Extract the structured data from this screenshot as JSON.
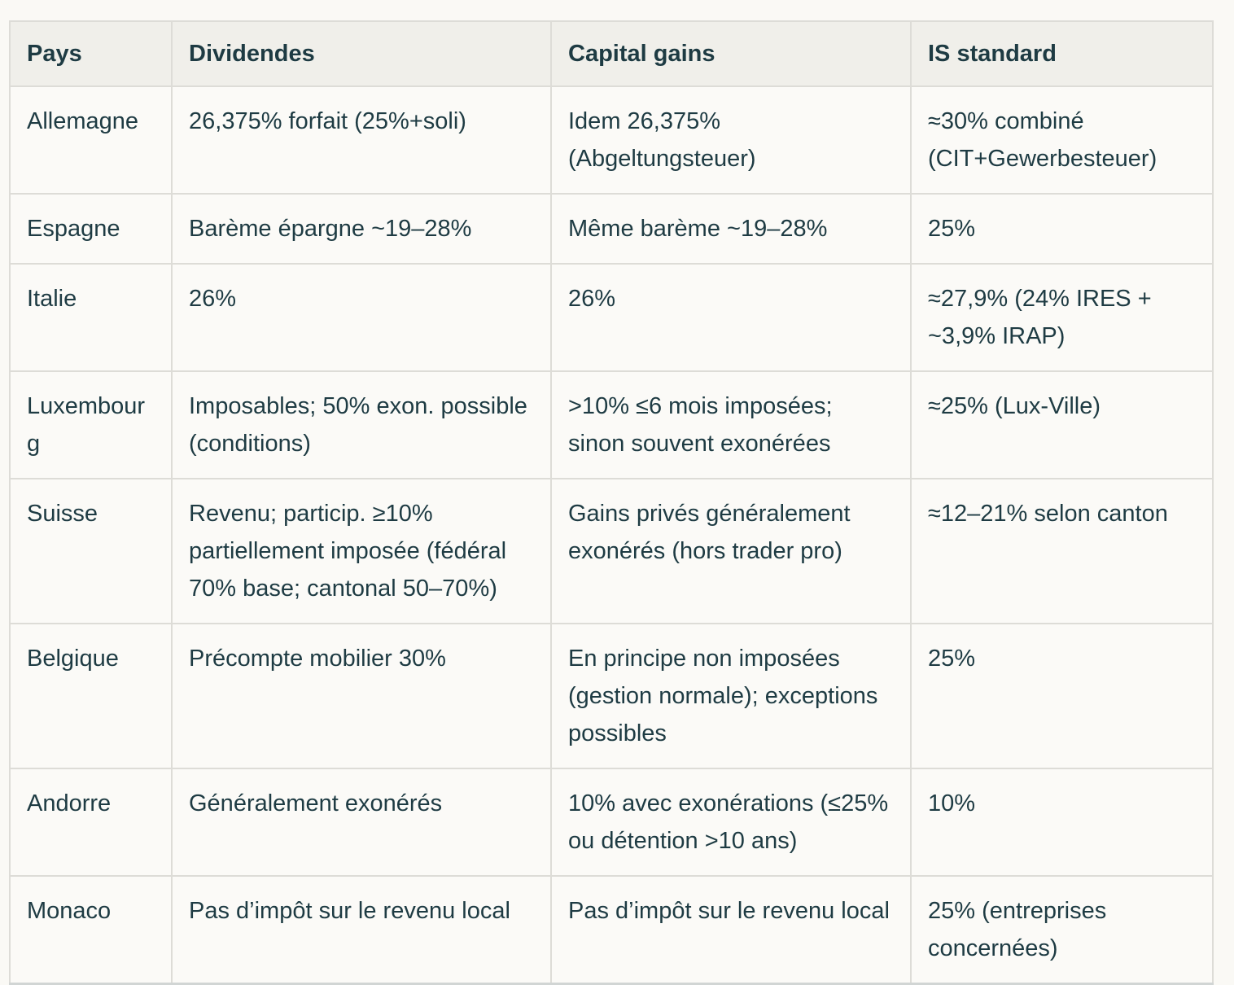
{
  "table": {
    "columns": [
      {
        "key": "pays",
        "label": "Pays"
      },
      {
        "key": "dividendes",
        "label": "Dividendes"
      },
      {
        "key": "capital_gains",
        "label": "Capital gains"
      },
      {
        "key": "is_standard",
        "label": "IS standard"
      }
    ],
    "rows": [
      {
        "pays": "Allemagne",
        "dividendes": "26,375% forfait (25%+soli)",
        "capital_gains": "Idem 26,375% (Abgeltungsteuer)",
        "is_standard": "≈30% combiné (CIT+Gewerbesteuer)"
      },
      {
        "pays": "Espagne",
        "dividendes": "Barème épargne ~19–28%",
        "capital_gains": "Même barème ~19–28%",
        "is_standard": "25%"
      },
      {
        "pays": "Italie",
        "dividendes": "26%",
        "capital_gains": "26%",
        "is_standard": "≈27,9% (24% IRES + ~3,9% IRAP)"
      },
      {
        "pays": "Luxembourg",
        "dividendes": "Imposables; 50% exon. possible (conditions)",
        "capital_gains": ">10% ≤6 mois imposées; sinon souvent exonérées",
        "is_standard": "≈25% (Lux-Ville)"
      },
      {
        "pays": "Suisse",
        "dividendes": "Revenu; particip. ≥10% partiellement imposée (fédéral 70% base; cantonal 50–70%)",
        "capital_gains": "Gains privés généralement exonérés (hors trader pro)",
        "is_standard": "≈12–21% selon canton"
      },
      {
        "pays": "Belgique",
        "dividendes": "Précompte mobilier 30%",
        "capital_gains": "En principe non imposées (gestion normale); exceptions possibles",
        "is_standard": "25%"
      },
      {
        "pays": "Andorre",
        "dividendes": "Généralement exonérés",
        "capital_gains": "10% avec exonérations (≤25% ou détention >10 ans)",
        "is_standard": "10%"
      },
      {
        "pays": "Monaco",
        "dividendes": "Pas d’impôt sur le revenu local",
        "capital_gains": "Pas d’impôt sur le revenu local",
        "is_standard": "25% (entreprises concernées)"
      }
    ],
    "colors": {
      "text": "#1e3b43",
      "header_background": "#f0efea",
      "cell_background": "#fbfaf7",
      "border": "#dddcd7",
      "page_background": "#faf9f5"
    }
  }
}
